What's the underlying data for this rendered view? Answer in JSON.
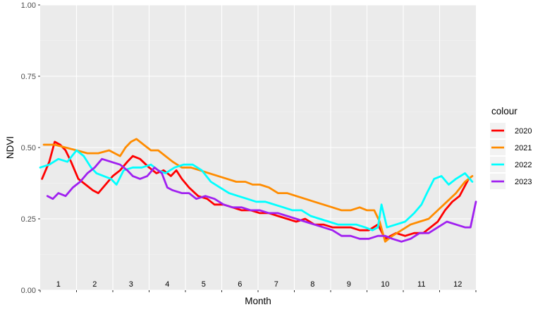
{
  "chart_data": {
    "type": "line",
    "xlabel": "Month",
    "ylabel": "NDVI",
    "xlim": [
      0.5,
      12.5
    ],
    "ylim": [
      0,
      1
    ],
    "grid": true,
    "legend_title": "colour",
    "legend_position": "right",
    "month_labels": [
      "1",
      "2",
      "3",
      "4",
      "5",
      "6",
      "7",
      "8",
      "9",
      "10",
      "11",
      "12"
    ],
    "y_ticks": [
      {
        "value": 0.0,
        "label": "0.00"
      },
      {
        "value": 0.25,
        "label": "0.25"
      },
      {
        "value": 0.5,
        "label": "0.50"
      },
      {
        "value": 0.75,
        "label": "0.75"
      },
      {
        "value": 1.0,
        "label": "1.00"
      }
    ],
    "series": [
      {
        "name": "2020",
        "color": "#ff0000",
        "x": [
          0.55,
          0.75,
          0.9,
          1.05,
          1.2,
          1.35,
          1.55,
          1.75,
          1.95,
          2.1,
          2.3,
          2.5,
          2.7,
          2.9,
          3.05,
          3.25,
          3.5,
          3.7,
          3.9,
          4.1,
          4.25,
          4.4,
          4.6,
          4.85,
          5.1,
          5.3,
          5.55,
          5.8,
          6.05,
          6.3,
          6.55,
          6.8,
          7.05,
          7.3,
          7.55,
          7.8,
          8.05,
          8.3,
          8.55,
          8.8,
          9.05,
          9.3,
          9.55,
          9.8,
          10.0,
          10.3,
          10.55,
          10.8,
          11.05,
          11.25,
          11.45,
          11.65,
          11.85,
          12.05,
          12.3
        ],
        "y": [
          0.39,
          0.45,
          0.52,
          0.51,
          0.49,
          0.45,
          0.39,
          0.37,
          0.35,
          0.34,
          0.37,
          0.4,
          0.42,
          0.45,
          0.47,
          0.46,
          0.43,
          0.41,
          0.42,
          0.4,
          0.42,
          0.39,
          0.36,
          0.33,
          0.32,
          0.3,
          0.3,
          0.29,
          0.28,
          0.28,
          0.27,
          0.27,
          0.26,
          0.25,
          0.24,
          0.25,
          0.23,
          0.23,
          0.22,
          0.22,
          0.22,
          0.21,
          0.21,
          0.23,
          0.18,
          0.2,
          0.19,
          0.2,
          0.2,
          0.22,
          0.24,
          0.28,
          0.31,
          0.33,
          0.39
        ]
      },
      {
        "name": "2021",
        "color": "#ff8c00",
        "x": [
          0.6,
          0.9,
          1.2,
          1.5,
          1.8,
          2.1,
          2.4,
          2.7,
          2.85,
          3.0,
          3.15,
          3.35,
          3.55,
          3.75,
          3.95,
          4.15,
          4.4,
          4.65,
          4.9,
          5.15,
          5.4,
          5.65,
          5.9,
          6.15,
          6.35,
          6.55,
          6.8,
          7.05,
          7.3,
          7.55,
          7.8,
          8.05,
          8.3,
          8.55,
          8.8,
          9.05,
          9.3,
          9.5,
          9.7,
          9.85,
          10.0,
          10.2,
          10.45,
          10.7,
          10.95,
          11.2,
          11.45,
          11.7,
          11.95,
          12.2,
          12.4
        ],
        "y": [
          0.51,
          0.51,
          0.5,
          0.49,
          0.48,
          0.48,
          0.49,
          0.47,
          0.5,
          0.52,
          0.53,
          0.51,
          0.49,
          0.49,
          0.47,
          0.45,
          0.43,
          0.43,
          0.42,
          0.41,
          0.4,
          0.39,
          0.38,
          0.38,
          0.37,
          0.37,
          0.36,
          0.34,
          0.34,
          0.33,
          0.32,
          0.31,
          0.3,
          0.29,
          0.28,
          0.28,
          0.29,
          0.28,
          0.28,
          0.24,
          0.17,
          0.19,
          0.21,
          0.23,
          0.24,
          0.25,
          0.28,
          0.31,
          0.34,
          0.38,
          0.4
        ]
      },
      {
        "name": "2022",
        "color": "#00ffff",
        "x": [
          0.5,
          0.75,
          1.0,
          1.25,
          1.5,
          1.7,
          1.9,
          2.05,
          2.25,
          2.45,
          2.6,
          2.8,
          3.05,
          3.3,
          3.55,
          3.75,
          3.95,
          4.2,
          4.45,
          4.7,
          4.95,
          5.2,
          5.45,
          5.7,
          5.95,
          6.2,
          6.45,
          6.7,
          6.95,
          7.2,
          7.45,
          7.7,
          7.95,
          8.2,
          8.45,
          8.7,
          8.95,
          9.2,
          9.45,
          9.65,
          9.8,
          9.9,
          10.05,
          10.3,
          10.55,
          10.8,
          11.0,
          11.15,
          11.35,
          11.55,
          11.75,
          11.95,
          12.2,
          12.4
        ],
        "y": [
          0.43,
          0.44,
          0.46,
          0.45,
          0.49,
          0.47,
          0.43,
          0.41,
          0.4,
          0.39,
          0.37,
          0.42,
          0.43,
          0.43,
          0.44,
          0.42,
          0.41,
          0.43,
          0.44,
          0.44,
          0.42,
          0.38,
          0.36,
          0.34,
          0.33,
          0.32,
          0.31,
          0.31,
          0.3,
          0.29,
          0.28,
          0.28,
          0.26,
          0.25,
          0.24,
          0.23,
          0.23,
          0.23,
          0.22,
          0.21,
          0.22,
          0.3,
          0.22,
          0.23,
          0.24,
          0.27,
          0.3,
          0.34,
          0.39,
          0.4,
          0.37,
          0.39,
          0.41,
          0.38
        ]
      },
      {
        "name": "2023",
        "color": "#a020f0",
        "x": [
          0.7,
          0.85,
          1.0,
          1.2,
          1.4,
          1.6,
          1.8,
          2.0,
          2.2,
          2.45,
          2.7,
          2.9,
          3.05,
          3.25,
          3.45,
          3.65,
          3.85,
          4.0,
          4.15,
          4.4,
          4.6,
          4.8,
          5.05,
          5.3,
          5.55,
          5.8,
          6.05,
          6.3,
          6.55,
          6.8,
          7.05,
          7.3,
          7.55,
          7.8,
          8.05,
          8.3,
          8.55,
          8.8,
          9.05,
          9.3,
          9.55,
          9.8,
          10.0,
          10.2,
          10.45,
          10.7,
          10.95,
          11.2,
          11.45,
          11.7,
          11.95,
          12.2,
          12.35,
          12.5
        ],
        "y": [
          0.33,
          0.32,
          0.34,
          0.33,
          0.36,
          0.38,
          0.41,
          0.43,
          0.46,
          0.45,
          0.44,
          0.42,
          0.4,
          0.39,
          0.4,
          0.43,
          0.41,
          0.36,
          0.35,
          0.34,
          0.34,
          0.32,
          0.33,
          0.32,
          0.3,
          0.29,
          0.29,
          0.28,
          0.28,
          0.27,
          0.27,
          0.26,
          0.25,
          0.24,
          0.23,
          0.22,
          0.21,
          0.19,
          0.19,
          0.18,
          0.18,
          0.19,
          0.19,
          0.18,
          0.17,
          0.18,
          0.2,
          0.2,
          0.22,
          0.24,
          0.23,
          0.22,
          0.22,
          0.31
        ]
      }
    ]
  }
}
